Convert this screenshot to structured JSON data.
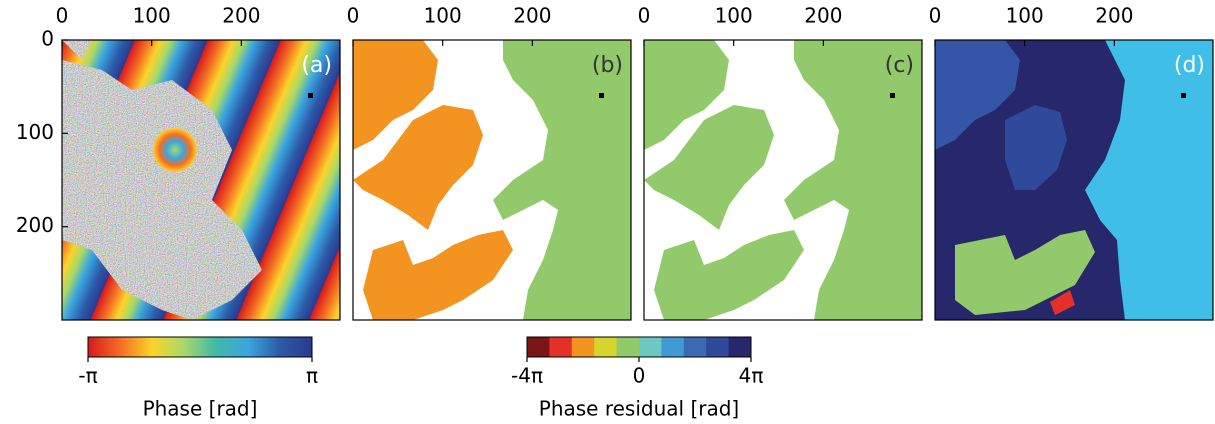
{
  "chart_data": [
    {
      "type": "image",
      "panel_label": "(a)",
      "panel_label_color": "#ffffff",
      "xlim": [
        0,
        310
      ],
      "ylim": [
        0,
        300
      ],
      "y_inverted": true,
      "xticks": [
        0,
        100,
        200
      ],
      "yticks": [
        0,
        100,
        200
      ]
    },
    {
      "type": "image",
      "panel_label": "(b)",
      "panel_label_color": "#333333",
      "xlim": [
        0,
        310
      ],
      "ylim": [
        0,
        300
      ],
      "y_inverted": true,
      "xticks": [
        0,
        100,
        200
      ]
    },
    {
      "type": "image",
      "panel_label": "(c)",
      "panel_label_color": "#333333",
      "xlim": [
        0,
        310
      ],
      "ylim": [
        0,
        300
      ],
      "y_inverted": true,
      "xticks": [
        0,
        100,
        200
      ]
    },
    {
      "type": "image",
      "panel_label": "(d)",
      "panel_label_color": "#ffffff",
      "xlim": [
        0,
        310
      ],
      "ylim": [
        0,
        300
      ],
      "y_inverted": true,
      "xticks": [
        0,
        100,
        200
      ]
    },
    {
      "type": "colorbar",
      "label": "Phase [rad]",
      "lim": [
        -3.14159,
        3.14159
      ],
      "ticks": [
        {
          "value": -3.14159,
          "label": "-π"
        },
        {
          "value": 3.14159,
          "label": "π"
        }
      ],
      "colors": [
        "#d7191c",
        "#f46d23",
        "#fdd32a",
        "#a6d96a",
        "#3fb9a8",
        "#3aa6e0",
        "#2c5aa8",
        "#2b3990"
      ],
      "continuous": true
    },
    {
      "type": "colorbar",
      "label": "Phase residual [rad]",
      "lim": [
        -12.56637,
        12.56637
      ],
      "ticks": [
        {
          "value": -12.56637,
          "label": "-4π"
        },
        0,
        {
          "value": 12.56637,
          "label": "4π"
        }
      ],
      "colors": [
        "#7b1416",
        "#e5302a",
        "#f39320",
        "#d5d52c",
        "#92c96a",
        "#6cc8c0",
        "#3f9ad6",
        "#3a6ab4",
        "#2f4a9a",
        "#26286b"
      ],
      "continuous": false
    }
  ]
}
